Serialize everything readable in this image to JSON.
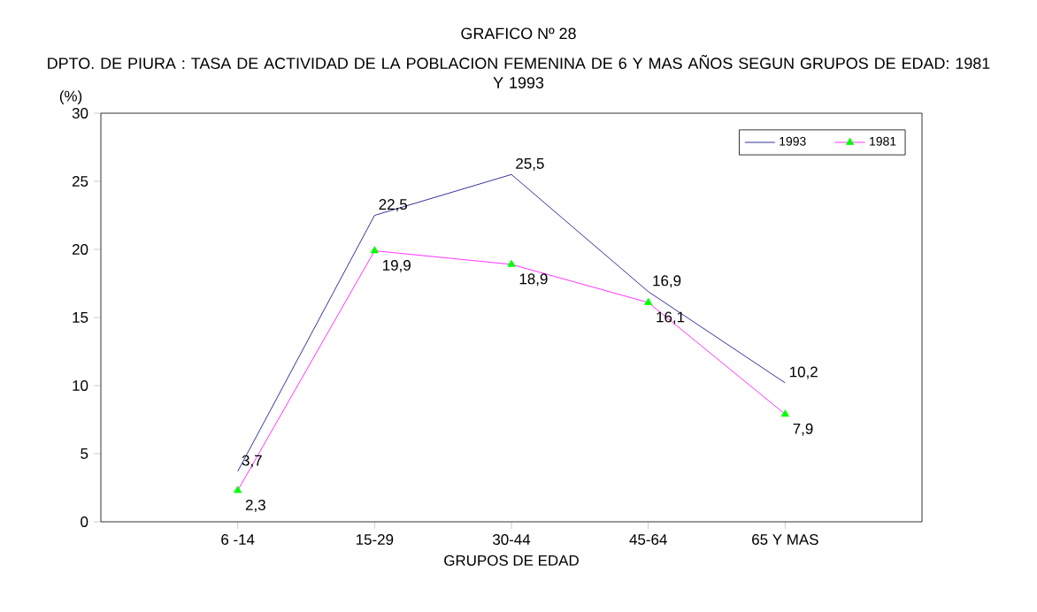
{
  "chart_data": {
    "type": "line",
    "title": "GRAFICO Nº 28",
    "subtitle": "DPTO. DE PIURA : TASA DE ACTIVIDAD DE LA POBLACION FEMENINA DE 6 Y MAS AÑOS SEGUN GRUPOS DE EDAD: 1981 Y 1993",
    "xlabel": "GRUPOS DE EDAD",
    "ylabel": "(%)",
    "categories": [
      "6 -14",
      "15-29",
      "30-44",
      "45-64",
      "65 Y MAS"
    ],
    "series": [
      {
        "name": "1993",
        "color": "#000080",
        "marker": "none",
        "values": [
          3.7,
          22.5,
          25.5,
          16.9,
          10.2
        ],
        "value_labels": [
          "3,7",
          "22,5",
          "25,5",
          "16,9",
          "10,2"
        ]
      },
      {
        "name": "1981",
        "color": "#ff00ff",
        "marker": "triangle",
        "values": [
          2.3,
          19.9,
          18.9,
          16.1,
          7.9
        ],
        "value_labels": [
          "2,3",
          "19,9",
          "18,9",
          "16,1",
          "7,9"
        ]
      }
    ],
    "ylim": [
      0,
      30
    ],
    "yticks": [
      0,
      5,
      10,
      15,
      20,
      25,
      30
    ],
    "grid": false,
    "legend": "top right",
    "line_style": "solid"
  }
}
